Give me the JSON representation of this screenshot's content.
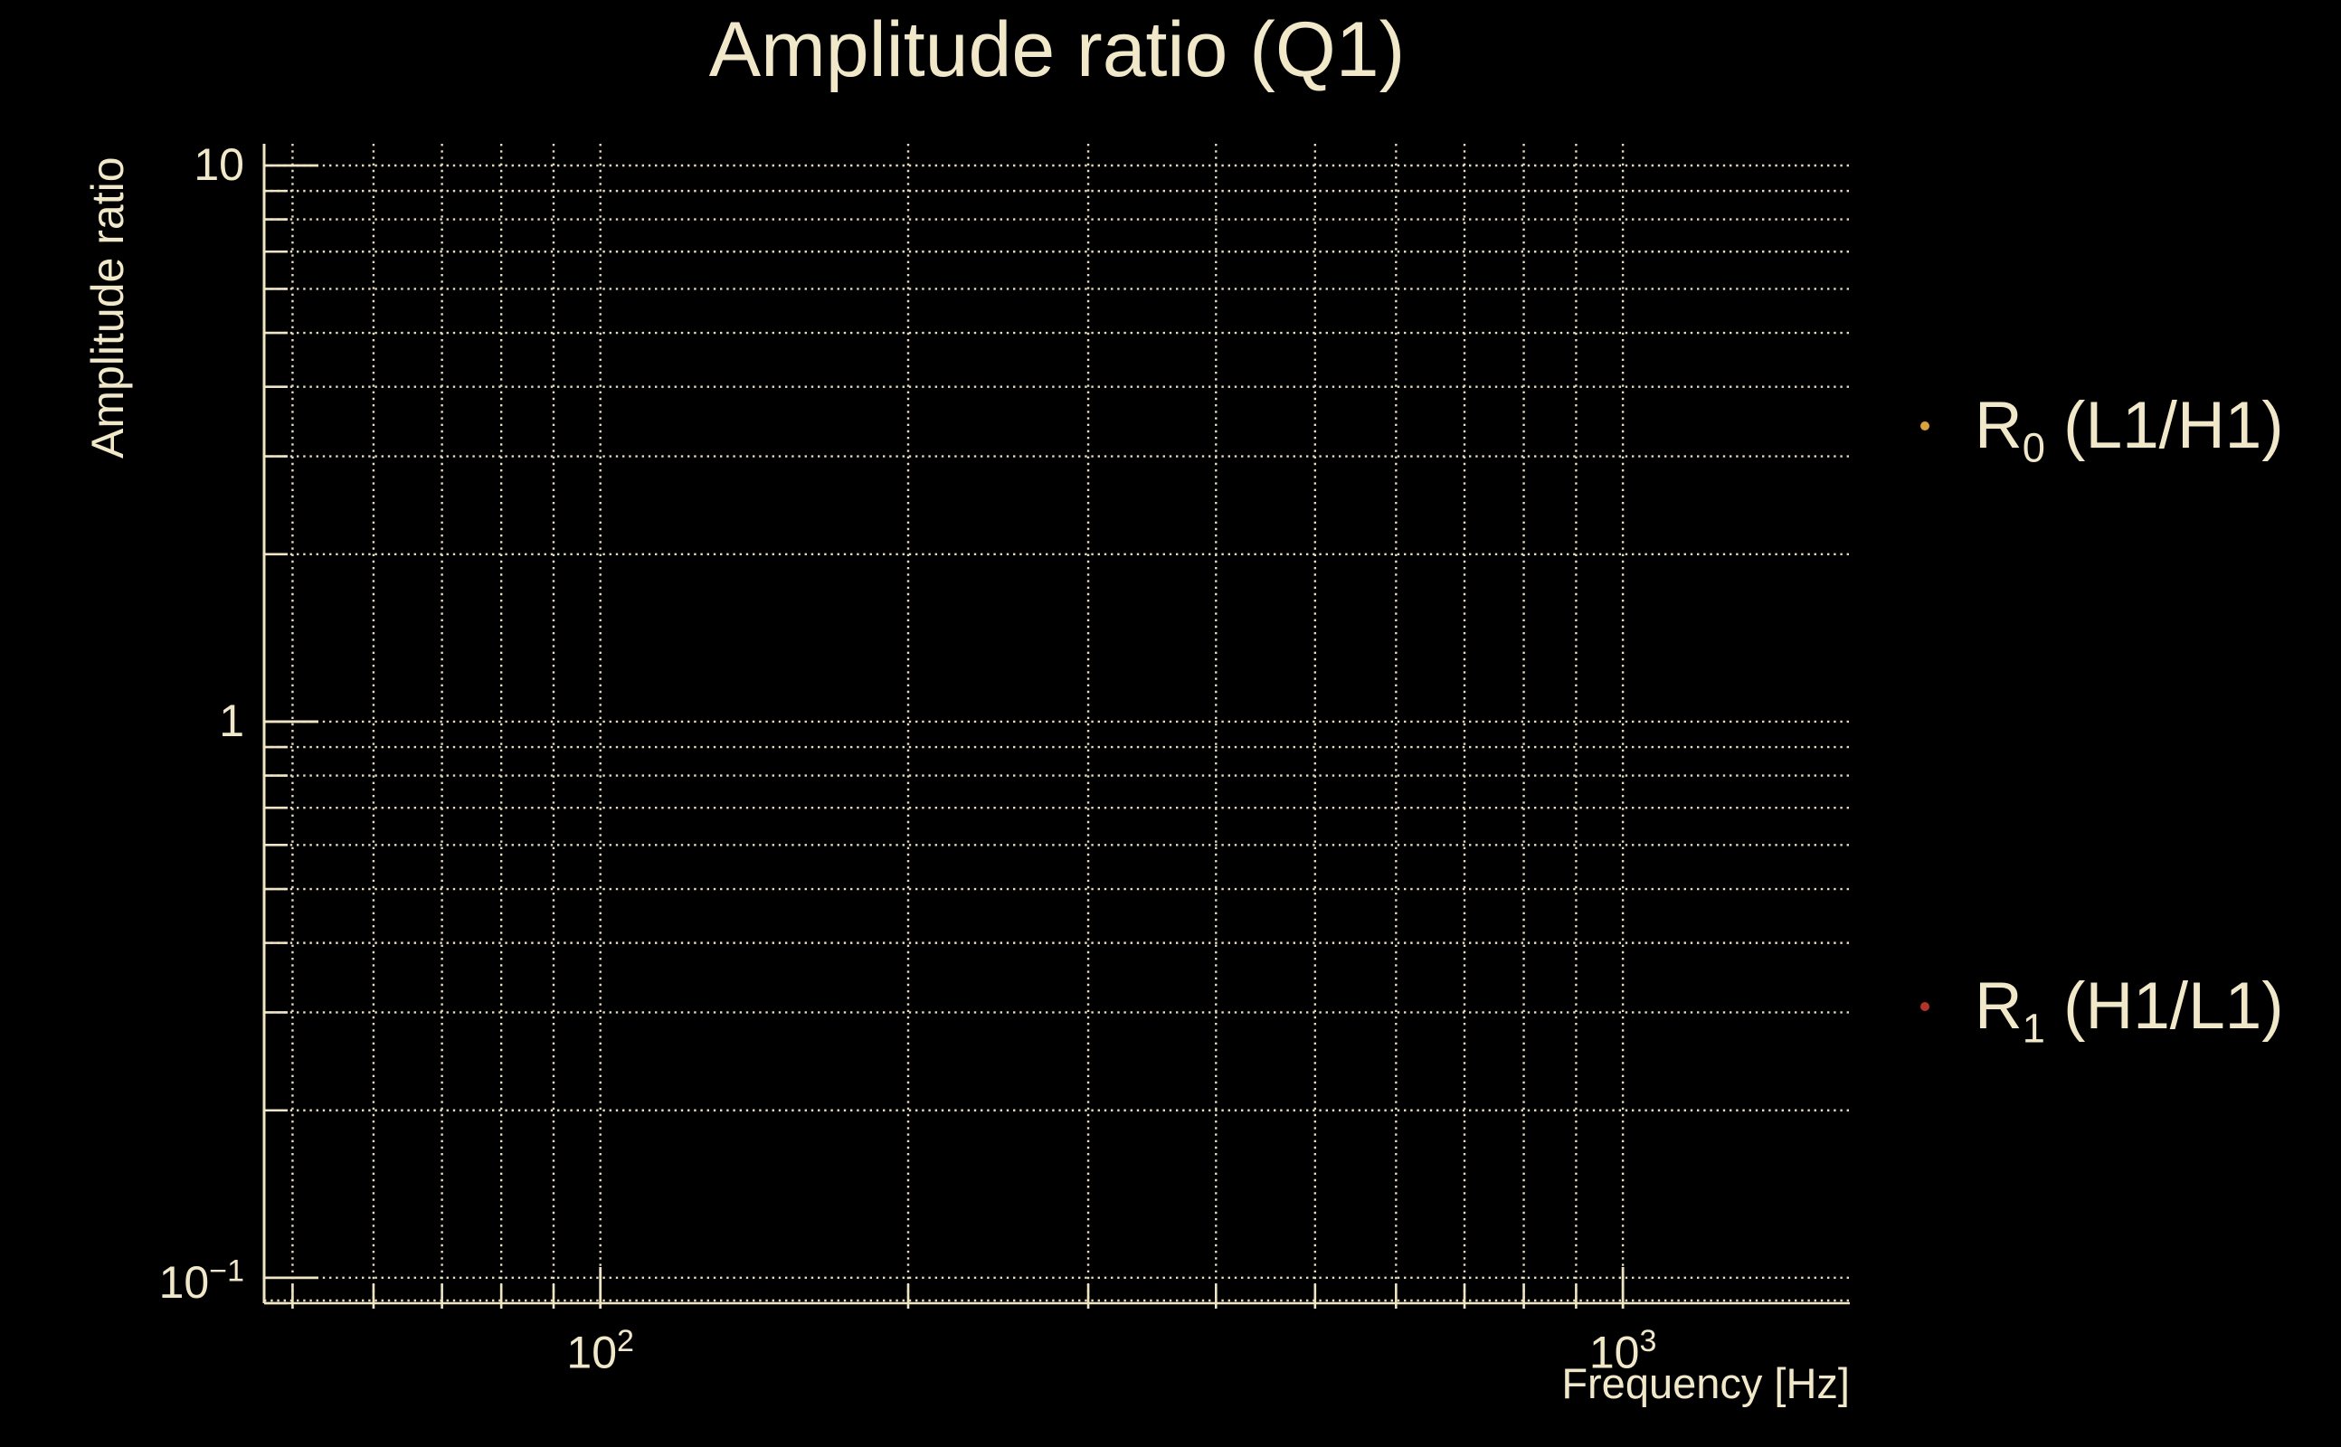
{
  "figure": {
    "background_color": "#000000",
    "text_color": "#f1e8ca"
  },
  "chart_data": {
    "type": "scatter",
    "title": "Amplitude ratio (Q1)",
    "xlabel": "Frequency [Hz]",
    "ylabel": "Amplitude ratio",
    "xscale": "log",
    "yscale": "log",
    "xlim": [
      46.9,
      1667
    ],
    "ylim": [
      0.09,
      10.94
    ],
    "grid": "on",
    "grid_style": "dotted",
    "axis_color": "#efe5c4",
    "grid_color": "#e5dcbc",
    "x_major_ticks": [
      100,
      1000
    ],
    "x_minor_ticks": [
      50,
      60,
      70,
      80,
      90,
      200,
      300,
      400,
      500,
      600,
      700,
      800,
      900
    ],
    "y_major_ticks": [
      0.1,
      1,
      10
    ],
    "y_minor_ticks": [
      0.09,
      0.2,
      0.3,
      0.4,
      0.5,
      0.6,
      0.7,
      0.8,
      0.9,
      2,
      3,
      4,
      5,
      6,
      7,
      8,
      9
    ],
    "x_tick_labels": [
      {
        "value": 100,
        "base": "10",
        "exp": "2"
      },
      {
        "value": 1000,
        "base": "10",
        "exp": "3"
      }
    ],
    "y_tick_labels": [
      {
        "value": 10,
        "base": "10",
        "exp": ""
      },
      {
        "value": 1,
        "base": "1",
        "exp": ""
      },
      {
        "value": 0.1,
        "base": "10",
        "exp": "−1"
      }
    ],
    "series": [
      {
        "name": "R0 (L1/H1)",
        "label_prefix": "R",
        "label_sub": "0",
        "label_rest": " (L1/H1)",
        "color": "#d9a23b",
        "marker": "dot",
        "x": [],
        "y": []
      },
      {
        "name": "R1 (H1/L1)",
        "label_prefix": "R",
        "label_sub": "1",
        "label_rest": " (H1/L1)",
        "color": "#b2352a",
        "marker": "dot",
        "x": [],
        "y": []
      }
    ],
    "legend": {
      "position": "right-outside"
    }
  }
}
